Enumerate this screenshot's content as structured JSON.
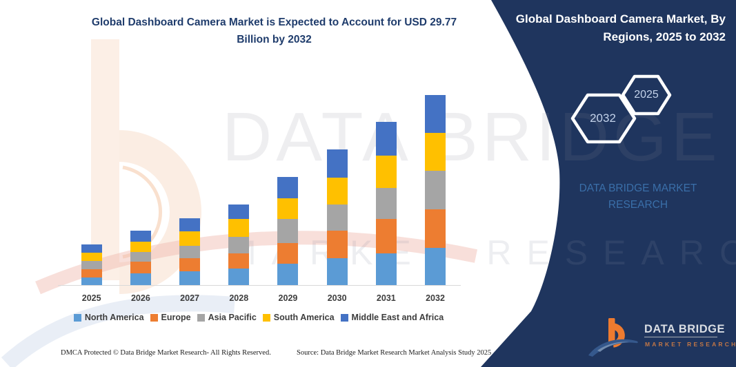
{
  "colors": {
    "panel_navy": "#1f355e",
    "title_blue": "#1f3c6c",
    "axis_line": "#d9d9d9",
    "legend_text": "#3d3d3d",
    "logo_orange": "#ee7b2f",
    "logo_swoosh_blue": "#35588c",
    "brand_blue": "#3a6fa9",
    "hex_label": "#c3d2ea"
  },
  "header": {
    "title_line1": "Global Dashboard Camera Market is Expected to Account for USD 29.77",
    "title_line2": "Billion by 2032"
  },
  "side_panel": {
    "title_line1": "Global Dashboard Camera Market, By",
    "title_line2": "Regions, 2025 to 2032",
    "hexagons": [
      {
        "label": "2032"
      },
      {
        "label": "2025"
      }
    ],
    "brand_line1": "DATA BRIDGE MARKET",
    "brand_line2": "RESEARCH"
  },
  "watermark": {
    "line1": "DATA BRIDGE",
    "line2": "MARKET RESEARCH"
  },
  "logo": {
    "name": "DATA BRIDGE",
    "subtitle": "MARKET RESEARCH"
  },
  "footer": {
    "left": "DMCA Protected © Data Bridge Market Research-  All Rights Reserved.",
    "right": "Source: Data Bridge Market Research  Market Analysis Study 2025"
  },
  "chart_data": {
    "type": "bar",
    "stacked": true,
    "title": "Global Dashboard Camera Market is Expected to Account for USD 29.77 Billion by 2032",
    "unit": "USD Billion",
    "categories": [
      "2025",
      "2026",
      "2027",
      "2028",
      "2029",
      "2030",
      "2031",
      "2032"
    ],
    "series": [
      {
        "name": "North America",
        "color": "#5B9BD5",
        "values": [
          1.29,
          1.89,
          2.25,
          2.68,
          3.47,
          4.29,
          5.08,
          5.87
        ]
      },
      {
        "name": "Europe",
        "color": "#ED7D31",
        "values": [
          1.32,
          1.87,
          2.04,
          2.39,
          3.22,
          4.26,
          5.3,
          6.08
        ]
      },
      {
        "name": "Asia Pacific",
        "color": "#A5A5A5",
        "values": [
          1.26,
          1.54,
          1.96,
          2.54,
          3.69,
          4.11,
          4.9,
          5.95
        ]
      },
      {
        "name": "South America",
        "color": "#FFC000",
        "values": [
          1.25,
          1.61,
          2.22,
          2.75,
          3.22,
          4.15,
          5.01,
          5.97
        ]
      },
      {
        "name": "Middle East and Africa",
        "color": "#4472C4",
        "values": [
          1.33,
          1.69,
          2.07,
          2.33,
          3.36,
          4.43,
          5.26,
          5.9
        ]
      }
    ],
    "year_totals": [
      6.45,
      8.6,
      10.53,
      12.69,
      16.96,
      21.24,
      25.55,
      29.77
    ],
    "ylim": [
      0,
      30
    ],
    "y_axis_visible": false,
    "grid": false,
    "legend_position": "bottom"
  }
}
